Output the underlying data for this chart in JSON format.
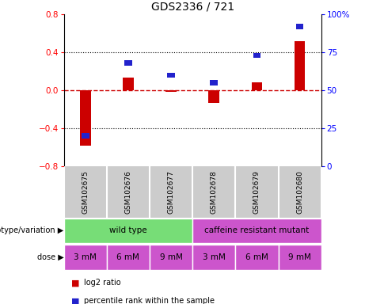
{
  "title": "GDS2336 / 721",
  "samples": [
    "GSM102675",
    "GSM102676",
    "GSM102677",
    "GSM102678",
    "GSM102679",
    "GSM102680"
  ],
  "log2_ratio": [
    -0.58,
    0.13,
    -0.02,
    -0.13,
    0.08,
    0.52
  ],
  "percentile_rank": [
    20,
    68,
    60,
    55,
    73,
    92
  ],
  "ylim_left": [
    -0.8,
    0.8
  ],
  "ylim_right": [
    0,
    100
  ],
  "yticks_left": [
    -0.8,
    -0.4,
    0.0,
    0.4,
    0.8
  ],
  "yticks_right": [
    0,
    25,
    50,
    75,
    100
  ],
  "ytick_labels_right": [
    "0",
    "25",
    "50",
    "75",
    "100%"
  ],
  "hlines": [
    -0.4,
    0.4
  ],
  "genotype_groups": [
    {
      "label": "wild type",
      "start": 0,
      "end": 3,
      "color": "#77dd77"
    },
    {
      "label": "caffeine resistant mutant",
      "start": 3,
      "end": 6,
      "color": "#cc55cc"
    }
  ],
  "dose_labels": [
    "3 mM",
    "6 mM",
    "9 mM",
    "3 mM",
    "6 mM",
    "9 mM"
  ],
  "dose_color": "#cc55cc",
  "bar_color_red": "#cc0000",
  "bar_color_blue": "#2222cc",
  "dashed_zero_color": "#cc0000",
  "bg_color_sample": "#cccccc",
  "legend_red": "log2 ratio",
  "legend_blue": "percentile rank within the sample",
  "genotype_label": "genotype/variation",
  "dose_label": "dose"
}
